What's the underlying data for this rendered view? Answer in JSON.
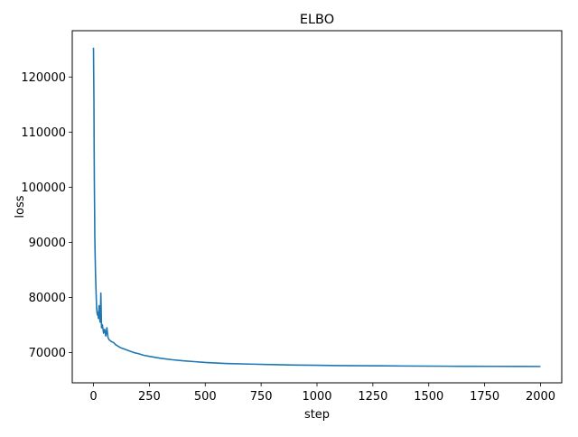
{
  "chart_data": {
    "type": "line",
    "title": "ELBO",
    "xlabel": "step",
    "ylabel": "loss",
    "xlim": [
      -95,
      2095
    ],
    "ylim": [
      64500,
      128400
    ],
    "xticks": [
      0,
      250,
      500,
      750,
      1000,
      1250,
      1500,
      1750,
      2000
    ],
    "yticks": [
      70000,
      80000,
      90000,
      100000,
      110000,
      120000
    ],
    "grid": false,
    "legend": "none",
    "colors": {
      "line": "#1f77b4"
    },
    "series": [
      {
        "x": [
          0,
          2,
          3,
          4,
          5,
          6,
          7,
          8,
          9,
          10,
          12,
          14,
          16,
          18,
          20,
          22,
          25,
          28,
          30,
          33,
          36,
          40,
          45,
          50,
          55,
          60,
          65,
          70,
          80,
          90,
          100,
          120,
          140,
          160,
          180,
          200,
          225,
          250,
          300,
          350,
          400,
          450,
          500,
          600,
          700,
          800,
          900,
          1000,
          1100,
          1200,
          1300,
          1400,
          1500,
          1600,
          1700,
          1800,
          1900,
          2000
        ],
        "y": [
          125300,
          116000,
          107000,
          100500,
          96000,
          91000,
          88500,
          86500,
          84500,
          83000,
          80500,
          78000,
          77200,
          76800,
          77300,
          76200,
          78500,
          76000,
          75500,
          80800,
          74500,
          75000,
          73500,
          74200,
          73000,
          74500,
          72700,
          72300,
          72000,
          71800,
          71400,
          70900,
          70600,
          70300,
          70000,
          69800,
          69500,
          69300,
          68950,
          68700,
          68500,
          68350,
          68200,
          68000,
          67900,
          67800,
          67720,
          67680,
          67630,
          67600,
          67580,
          67550,
          67530,
          67510,
          67500,
          67490,
          67480,
          67470
        ]
      }
    ]
  }
}
